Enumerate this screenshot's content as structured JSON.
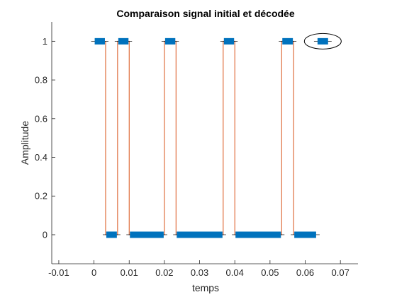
{
  "chart_data": {
    "type": "line",
    "title": "Comparaison signal initial et décodée",
    "xlabel": "temps",
    "ylabel": "Amplitude",
    "xlim": [
      -0.012,
      0.075
    ],
    "ylim": [
      -0.15,
      1.1
    ],
    "xticks": [
      -0.01,
      0,
      0.01,
      0.02,
      0.03,
      0.04,
      0.05,
      0.06,
      0.07
    ],
    "xtick_labels": [
      "-0.01",
      "0",
      "0.01",
      "0.02",
      "0.03",
      "0.04",
      "0.05",
      "0.06",
      "0.07"
    ],
    "yticks": [
      0,
      0.2,
      0.4,
      0.6,
      0.8,
      1
    ],
    "ytick_labels": [
      "0",
      "0.2",
      "0.4",
      "0.6",
      "0.8",
      "1"
    ],
    "grid": false,
    "series": [
      {
        "kind": "step",
        "color": "#D95319",
        "points": [
          [
            0.0033,
            1
          ],
          [
            0.0033,
            0
          ],
          [
            0.0067,
            0
          ],
          [
            0.0067,
            1
          ],
          [
            0.01,
            1
          ],
          [
            0.01,
            0
          ],
          [
            0.02,
            0
          ],
          [
            0.02,
            1
          ],
          [
            0.0233,
            1
          ],
          [
            0.0233,
            0
          ],
          [
            0.0367,
            0
          ],
          [
            0.0367,
            1
          ],
          [
            0.04,
            1
          ],
          [
            0.04,
            0
          ],
          [
            0.0533,
            0
          ],
          [
            0.0533,
            1
          ],
          [
            0.0567,
            1
          ],
          [
            0.0567,
            0
          ]
        ]
      },
      {
        "kind": "segments",
        "color": "#0072BD",
        "segments": [
          {
            "x0": 0.0,
            "x1": 0.0033,
            "y": 1
          },
          {
            "x0": 0.0033,
            "x1": 0.0067,
            "y": 0
          },
          {
            "x0": 0.0067,
            "x1": 0.01,
            "y": 1
          },
          {
            "x0": 0.01,
            "x1": 0.02,
            "y": 0
          },
          {
            "x0": 0.02,
            "x1": 0.0233,
            "y": 1
          },
          {
            "x0": 0.0233,
            "x1": 0.0367,
            "y": 0
          },
          {
            "x0": 0.0367,
            "x1": 0.04,
            "y": 1
          },
          {
            "x0": 0.04,
            "x1": 0.0533,
            "y": 0
          },
          {
            "x0": 0.0533,
            "x1": 0.0567,
            "y": 1
          },
          {
            "x0": 0.0567,
            "x1": 0.0633,
            "y": 0
          },
          {
            "x0": 0.0633,
            "x1": 0.0667,
            "y": 1
          }
        ]
      }
    ],
    "annotation": {
      "shape": "ellipse",
      "x": 0.065,
      "y": 1
    }
  }
}
